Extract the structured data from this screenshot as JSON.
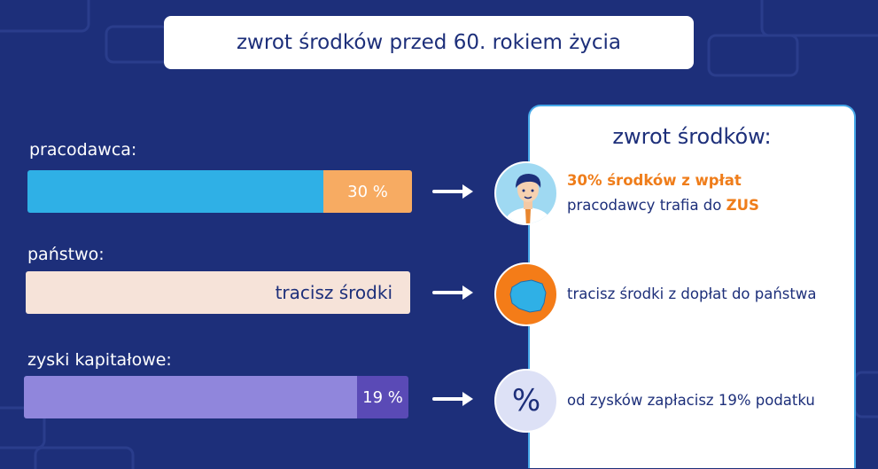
{
  "header": {
    "title": "zwrot środków przed 60. rokiem życia"
  },
  "rows": {
    "employer": {
      "label": "pracodawca:",
      "share_label": "30 %",
      "share": 0.3
    },
    "state": {
      "label": "państwo:",
      "bar_text": "tracisz środki"
    },
    "gains": {
      "label": "zyski kapitałowe:",
      "share_label": "19 %",
      "share": 0.19
    }
  },
  "panel": {
    "title": "zwrot środków:",
    "employer": {
      "highlight": "30% środków z wpłat",
      "text": "pracodawcy trafia do",
      "zus": "ZUS"
    },
    "state": {
      "text": "tracisz środki z dopłat do państwa"
    },
    "gains": {
      "text": "od zysków zapłacisz 19% podatku",
      "icon_symbol": "%"
    }
  },
  "icons": {
    "employer": "person-avatar-icon",
    "state": "poland-map-icon",
    "gains": "percent-icon",
    "arrows": "arrow-right-icon"
  },
  "colors": {
    "background": "#1d2f7a",
    "employer_bar": "#2fb0e6",
    "employer_share": "#f7ab62",
    "state_bar": "#f6e3d9",
    "gains_bar": "#9086dc",
    "gains_share": "#5a4ab6",
    "accent_orange": "#ef7d1a",
    "panel_border": "#45a8e8"
  }
}
